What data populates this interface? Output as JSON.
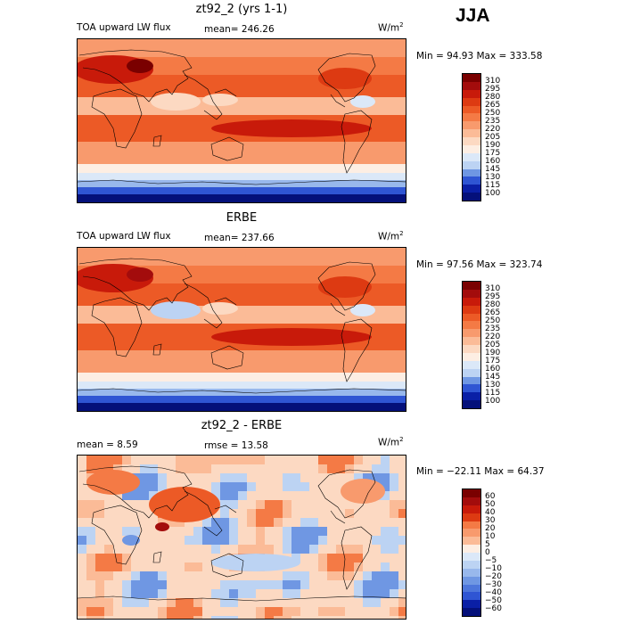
{
  "season": "JJA",
  "colors": {
    "pos": [
      "#7a0000",
      "#a30c0c",
      "#c81a0a",
      "#dd3a12",
      "#ec5a26",
      "#f47a45",
      "#f89a6d",
      "#fbbb97",
      "#fcd9c2",
      "#fdeee3"
    ],
    "neg": [
      "#dbe8f8",
      "#bcd3f3",
      "#98b8ec",
      "#6f97e3",
      "#4d76db",
      "#2f55d3",
      "#1838c4",
      "#0a1fa6",
      "#04107a"
    ]
  },
  "panels": [
    {
      "title": "zt92_2 (yrs 1-1)",
      "left_label": "TOA upward LW flux",
      "center_label": "mean=  246.26",
      "units": "W/m",
      "units_exp": "2",
      "minmax": "Min =   94.93  Max =  333.58",
      "colorbar_labels": [
        "310",
        "295",
        "280",
        "265",
        "250",
        "235",
        "220",
        "205",
        "190",
        "175",
        "160",
        "145",
        "130",
        "115",
        "100"
      ]
    },
    {
      "title": "ERBE",
      "left_label": "TOA upward LW flux",
      "center_label": "mean=  237.66",
      "units": "W/m",
      "units_exp": "2",
      "minmax": "Min =   97.56  Max =  323.74",
      "colorbar_labels": [
        "310",
        "295",
        "280",
        "265",
        "250",
        "235",
        "220",
        "205",
        "190",
        "175",
        "160",
        "145",
        "130",
        "115",
        "100"
      ]
    },
    {
      "title": "zt92_2 - ERBE",
      "left_label": "mean =    8.59",
      "center_label": "rmse =   13.58",
      "units": "W/m",
      "units_exp": "2",
      "minmax": "Min = −22.11  Max =   64.37",
      "colorbar_labels": [
        "60",
        "50",
        "40",
        "30",
        "20",
        "10",
        "5",
        "0",
        "−5",
        "−10",
        "−20",
        "−30",
        "−40",
        "−50",
        "−60"
      ]
    }
  ],
  "chart_data": [
    {
      "type": "heatmap",
      "title": "zt92_2 (yrs 1-1)",
      "variable": "TOA upward LW flux",
      "units": "W/m2",
      "mean": 246.26,
      "min": 94.93,
      "max": 333.58,
      "contour_levels": [
        100,
        115,
        130,
        145,
        160,
        175,
        190,
        205,
        220,
        235,
        250,
        265,
        280,
        295,
        310
      ]
    },
    {
      "type": "heatmap",
      "title": "ERBE",
      "variable": "TOA upward LW flux",
      "units": "W/m2",
      "mean": 237.66,
      "min": 97.56,
      "max": 323.74,
      "contour_levels": [
        100,
        115,
        130,
        145,
        160,
        175,
        190,
        205,
        220,
        235,
        250,
        265,
        280,
        295,
        310
      ]
    },
    {
      "type": "heatmap",
      "title": "zt92_2 - ERBE",
      "units": "W/m2",
      "mean": 8.59,
      "rmse": 13.58,
      "min": -22.11,
      "max": 64.37,
      "contour_levels": [
        -60,
        -50,
        -40,
        -30,
        -20,
        -10,
        -5,
        0,
        5,
        10,
        20,
        30,
        40,
        50,
        60
      ]
    }
  ]
}
